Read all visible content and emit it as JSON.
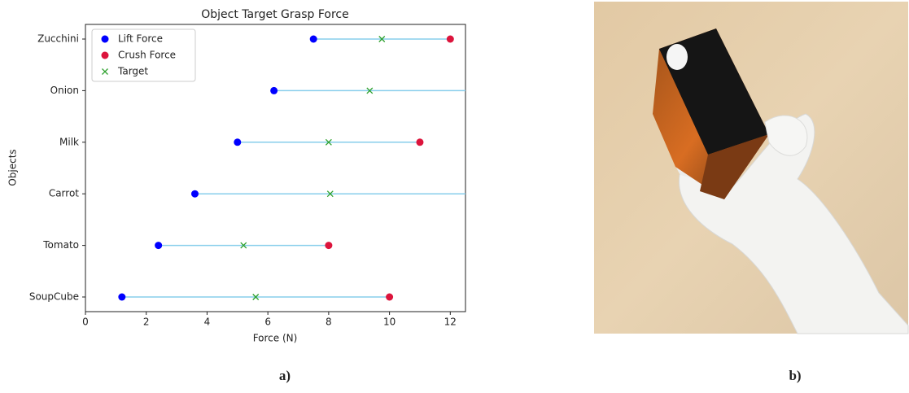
{
  "chart_data": {
    "type": "dumbbell",
    "title": "Object Target Grasp Force",
    "x_label": "Force (N)",
    "y_label": "Objects",
    "categories": [
      "SoupCube",
      "Tomato",
      "Carrot",
      "Milk",
      "Onion",
      "Zucchini"
    ],
    "series": [
      {
        "name": "Lift Force",
        "color": "#0000ff",
        "marker": "circle",
        "values": [
          1.2,
          2.4,
          3.6,
          5.0,
          6.2,
          7.5
        ]
      },
      {
        "name": "Crush Force",
        "color": "#dc143c",
        "marker": "circle",
        "values": [
          10,
          8,
          null,
          11,
          null,
          12
        ]
      },
      {
        "name": "Target",
        "color": "#2ca02c",
        "marker": "x",
        "values": [
          5.6,
          5.2,
          8.05,
          8.0,
          9.35,
          9.75
        ]
      }
    ],
    "range_line_color": "#87ceeb",
    "xlim": [
      0,
      12.5
    ],
    "xticks": [
      0,
      2,
      4,
      6,
      8,
      10,
      12
    ],
    "legend": "upper left"
  },
  "panel_labels": [
    "a)",
    "b)"
  ]
}
